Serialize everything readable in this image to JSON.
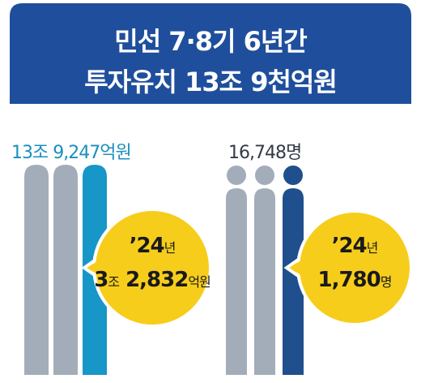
{
  "header": {
    "title": [
      "민선 7·8기 6년간",
      "투자유치 13조 9천억원"
    ]
  },
  "left": {
    "total": "13조 9,247억원",
    "callout": {
      "year": [
        "’24",
        "년"
      ],
      "value": [
        "3",
        "조",
        " 2,832",
        "억원"
      ]
    }
  },
  "right": {
    "total": "16,748명",
    "callout": {
      "year": [
        "’24",
        "년"
      ],
      "value": [
        "1,780",
        "명"
      ]
    }
  }
}
